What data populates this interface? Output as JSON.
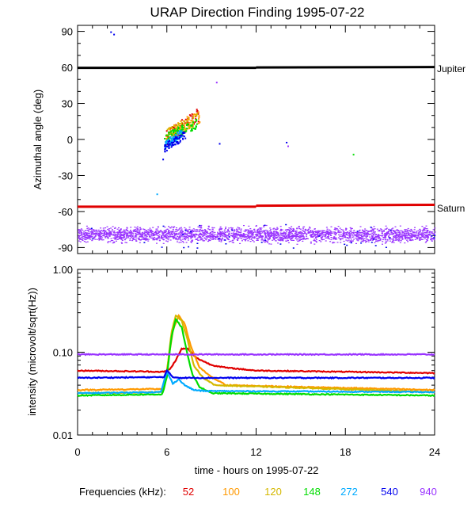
{
  "chart_data": [
    {
      "type": "scatter",
      "title": "URAP Direction Finding  1995-07-22",
      "ylabel": "Azimuthal angle (deg)",
      "xlabel": "",
      "xlim": [
        0,
        24
      ],
      "ylim": [
        -95,
        95
      ],
      "y_ticks": [
        90,
        60,
        30,
        0,
        -30,
        -60,
        -90
      ],
      "y_tick_labels": [
        "90",
        "60",
        "30",
        "0",
        "-30",
        "-60",
        "-90"
      ],
      "grid": false,
      "annotations": [
        {
          "text": "Jupiter",
          "y": 60
        },
        {
          "text": "Saturn",
          "y": -55
        }
      ],
      "reference_lines": [
        {
          "name": "Jupiter",
          "color": "#000000",
          "y_start": 59.6,
          "y_end": 60.3
        },
        {
          "name": "Saturn",
          "color": "#e00000",
          "y_start": -56.0,
          "y_end": -54.4
        }
      ],
      "background_band": {
        "color": "#9933ff",
        "y_range": [
          -88,
          -70
        ],
        "x_range": [
          0,
          24
        ]
      },
      "clusters": [
        {
          "color": "#e00000",
          "x_range": [
            5.9,
            8.2
          ],
          "y_range": [
            -5,
            28
          ]
        },
        {
          "color": "#ff9900",
          "x_range": [
            5.9,
            8.2
          ],
          "y_range": [
            -3,
            27
          ]
        },
        {
          "color": "#d4b800",
          "x_range": [
            5.9,
            8.0
          ],
          "y_range": [
            0,
            22
          ]
        },
        {
          "color": "#00dd00",
          "x_range": [
            5.8,
            8.0
          ],
          "y_range": [
            -2,
            18
          ]
        },
        {
          "color": "#00aaff",
          "x_range": [
            5.8,
            7.0
          ],
          "y_range": [
            -8,
            10
          ]
        },
        {
          "color": "#0000ee",
          "x_range": [
            5.8,
            7.2
          ],
          "y_range": [
            -10,
            8
          ]
        }
      ],
      "scattered_points": [
        {
          "x": 2.2,
          "y": 90,
          "color": "#0000ee"
        },
        {
          "x": 2.4,
          "y": 88,
          "color": "#0000ee"
        },
        {
          "x": 9.3,
          "y": 48,
          "color": "#9933ff"
        },
        {
          "x": 9.5,
          "y": -3,
          "color": "#0000ee"
        },
        {
          "x": 14.0,
          "y": -2,
          "color": "#0000ee"
        },
        {
          "x": 14.1,
          "y": -5,
          "color": "#9933ff"
        },
        {
          "x": 5.3,
          "y": -45,
          "color": "#00aaff"
        },
        {
          "x": 18.5,
          "y": -12,
          "color": "#00dd00"
        },
        {
          "x": 5.7,
          "y": -16,
          "color": "#0000ee"
        }
      ]
    },
    {
      "type": "line",
      "ylabel": "intensity (microvolt/sqrt(Hz))",
      "xlabel": "time - hours on 1995-07-22",
      "xlim": [
        0,
        24
      ],
      "ylim": [
        0.01,
        1.0
      ],
      "y_scale": "log",
      "x_ticks": [
        0,
        6,
        12,
        18,
        24
      ],
      "x_tick_labels": [
        "0",
        "6",
        "12",
        "18",
        "24"
      ],
      "y_ticks": [
        1.0,
        0.1,
        0.01
      ],
      "y_tick_labels": [
        "1.00",
        "0.10",
        "0.01"
      ],
      "grid": false,
      "series": [
        {
          "name": "52",
          "color": "#e00000",
          "x": [
            0,
            3,
            5.8,
            6.2,
            6.6,
            7.0,
            7.4,
            8.0,
            9.0,
            10.0,
            12.0,
            24
          ],
          "y": [
            0.06,
            0.059,
            0.058,
            0.062,
            0.08,
            0.11,
            0.11,
            0.085,
            0.07,
            0.065,
            0.06,
            0.056
          ]
        },
        {
          "name": "100",
          "color": "#ff9900",
          "x": [
            0,
            5.7,
            6.0,
            6.4,
            6.8,
            7.2,
            7.6,
            8.2,
            9.0,
            10.0,
            24
          ],
          "y": [
            0.035,
            0.036,
            0.06,
            0.18,
            0.28,
            0.22,
            0.12,
            0.065,
            0.05,
            0.04,
            0.035
          ]
        },
        {
          "name": "120",
          "color": "#d4b800",
          "x": [
            0,
            5.7,
            6.0,
            6.3,
            6.6,
            7.0,
            7.4,
            7.8,
            8.4,
            9.2,
            24
          ],
          "y": [
            0.032,
            0.033,
            0.055,
            0.17,
            0.28,
            0.24,
            0.14,
            0.07,
            0.05,
            0.04,
            0.033
          ]
        },
        {
          "name": "148",
          "color": "#00dd00",
          "x": [
            0,
            5.7,
            6.0,
            6.3,
            6.6,
            7.0,
            7.3,
            7.7,
            8.2,
            9.0,
            24
          ],
          "y": [
            0.03,
            0.031,
            0.05,
            0.15,
            0.25,
            0.2,
            0.11,
            0.055,
            0.038,
            0.032,
            0.03
          ]
        },
        {
          "name": "272",
          "color": "#00aaff",
          "x": [
            0,
            5.6,
            6.0,
            6.4,
            6.8,
            7.2,
            7.8,
            8.5,
            24
          ],
          "y": [
            0.032,
            0.033,
            0.058,
            0.042,
            0.047,
            0.04,
            0.035,
            0.034,
            0.033
          ]
        },
        {
          "name": "540",
          "color": "#0000ee",
          "x": [
            0,
            5.8,
            6.0,
            6.4,
            7.0,
            24
          ],
          "y": [
            0.049,
            0.05,
            0.06,
            0.05,
            0.049,
            0.049
          ]
        },
        {
          "name": "940",
          "color": "#9933ff",
          "x": [
            0,
            24
          ],
          "y": [
            0.094,
            0.094
          ]
        }
      ]
    }
  ],
  "legend": {
    "label": "Frequencies (kHz):",
    "items": [
      {
        "text": "52",
        "color": "#e00000"
      },
      {
        "text": "100",
        "color": "#ff9900"
      },
      {
        "text": "120",
        "color": "#d4b800"
      },
      {
        "text": "148",
        "color": "#00dd00"
      },
      {
        "text": "272",
        "color": "#00aaff"
      },
      {
        "text": "540",
        "color": "#0000ee"
      },
      {
        "text": "940",
        "color": "#9933ff"
      }
    ]
  }
}
